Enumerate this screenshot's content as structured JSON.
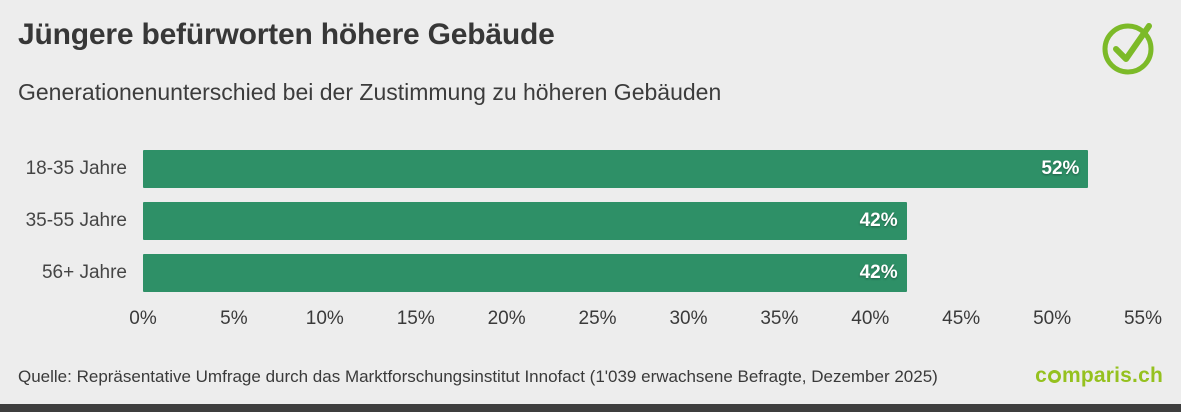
{
  "page": {
    "background": "#ededed",
    "bottom_bar_color": "#3e3e3e"
  },
  "header": {
    "title": "Jüngere befürworten höhere Gebäude",
    "subtitle": "Generationenunterschied bei der Zustimmung zu höheren Gebäuden"
  },
  "logo": {
    "name": "check-circle",
    "color": "#7cba28"
  },
  "chart_data": {
    "type": "bar",
    "orientation": "horizontal",
    "title": "Jüngere befürworten höhere Gebäude",
    "subtitle": "Generationenunterschied bei der Zustimmung zu höheren Gebäuden",
    "categories": [
      "18-35 Jahre",
      "35-55 Jahre",
      "56+ Jahre"
    ],
    "values": [
      52,
      42,
      42
    ],
    "value_labels": [
      "52%",
      "42%",
      "42%"
    ],
    "x_ticks": [
      "0%",
      "5%",
      "10%",
      "15%",
      "20%",
      "25%",
      "30%",
      "35%",
      "40%",
      "45%",
      "50%",
      "55%"
    ],
    "xlim": [
      0,
      55
    ],
    "xlabel": "",
    "ylabel": "",
    "grid": false,
    "legend": false,
    "bar_color": "#2e9067"
  },
  "footer": {
    "source": "Quelle: Repräsentative Umfrage durch das Marktforschungsinstitut Innofact (1'039 erwachsene Befragte, Dezember 2025)",
    "brand": "comparis.ch",
    "brand_color": "#95c11f"
  }
}
